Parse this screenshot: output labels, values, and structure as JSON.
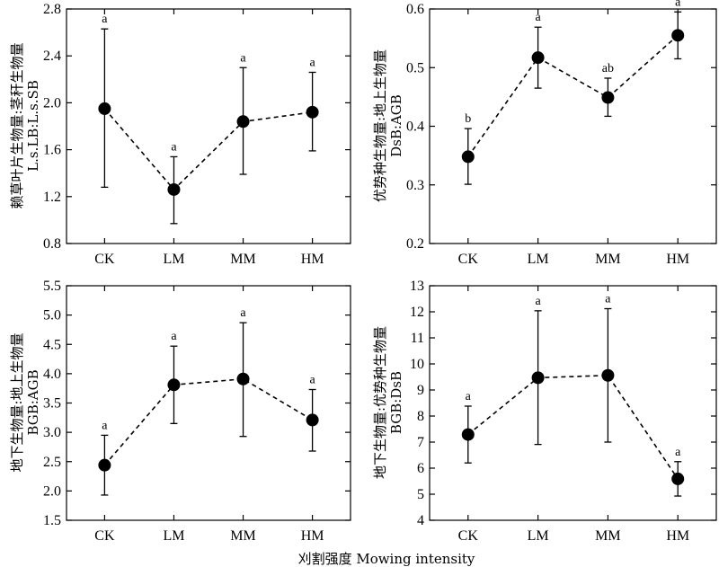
{
  "x_title": "刈割强度 Mowing intensity",
  "chart_data": [
    {
      "type": "line",
      "categories": [
        "CK",
        "LM",
        "MM",
        "HM"
      ],
      "ylabel_lines": [
        "赖草叶片生物量:茎秆生物量",
        "L.s.LB:L.s.SB"
      ],
      "ylim": [
        0.8,
        2.8
      ],
      "yticks": [
        0.8,
        1.2,
        1.6,
        2.0,
        2.4,
        2.8
      ],
      "ytick_labels": [
        "0.8",
        "1.2",
        "1.6",
        "2.0",
        "2.4",
        "2.8"
      ],
      "series": [
        {
          "values": [
            1.95,
            1.26,
            1.84,
            1.92
          ],
          "err_low": [
            1.28,
            0.97,
            1.39,
            1.59
          ],
          "err_high": [
            2.63,
            1.54,
            2.3,
            2.26
          ],
          "sig": [
            "a",
            "a",
            "a",
            "a"
          ]
        }
      ]
    },
    {
      "type": "line",
      "categories": [
        "CK",
        "LM",
        "MM",
        "HM"
      ],
      "ylabel_lines": [
        "优势种生物量:地上生物量",
        "DsB:AGB"
      ],
      "ylim": [
        0.2,
        0.6
      ],
      "yticks": [
        0.2,
        0.3,
        0.4,
        0.5,
        0.6
      ],
      "ytick_labels": [
        "0.2",
        "0.3",
        "0.4",
        "0.5",
        "0.6"
      ],
      "series": [
        {
          "values": [
            0.348,
            0.517,
            0.449,
            0.555
          ],
          "err_low": [
            0.301,
            0.465,
            0.417,
            0.515
          ],
          "err_high": [
            0.396,
            0.569,
            0.482,
            0.595
          ],
          "sig": [
            "b",
            "a",
            "ab",
            "a"
          ]
        }
      ]
    },
    {
      "type": "line",
      "categories": [
        "CK",
        "LM",
        "MM",
        "HM"
      ],
      "ylabel_lines": [
        "地下生物量:地上生物量",
        "BGB:AGB"
      ],
      "ylim": [
        1.5,
        5.5
      ],
      "yticks": [
        1.5,
        2.0,
        2.5,
        3.0,
        3.5,
        4.0,
        4.5,
        5.0,
        5.5
      ],
      "ytick_labels": [
        "1.5",
        "2.0",
        "2.5",
        "3.0",
        "3.5",
        "4.0",
        "4.5",
        "5.0",
        "5.5"
      ],
      "series": [
        {
          "values": [
            2.44,
            3.81,
            3.91,
            3.21
          ],
          "err_low": [
            1.93,
            3.15,
            2.93,
            2.68
          ],
          "err_high": [
            2.95,
            4.47,
            4.87,
            3.73
          ],
          "sig": [
            "a",
            "a",
            "a",
            "a"
          ]
        }
      ]
    },
    {
      "type": "line",
      "categories": [
        "CK",
        "LM",
        "MM",
        "HM"
      ],
      "ylabel_lines": [
        "地下生物量:优势种生物量",
        "BGB:DsB"
      ],
      "ylim": [
        4,
        13
      ],
      "yticks": [
        4,
        5,
        6,
        7,
        8,
        9,
        10,
        11,
        12,
        13
      ],
      "ytick_labels": [
        "4",
        "5",
        "6",
        "7",
        "8",
        "9",
        "10",
        "11",
        "12",
        "13"
      ],
      "series": [
        {
          "values": [
            7.29,
            9.47,
            9.56,
            5.59
          ],
          "err_low": [
            6.2,
            6.91,
            7.0,
            4.93
          ],
          "err_high": [
            8.38,
            12.04,
            12.12,
            6.25
          ],
          "sig": [
            "a",
            "a",
            "a",
            "a"
          ]
        }
      ]
    }
  ]
}
